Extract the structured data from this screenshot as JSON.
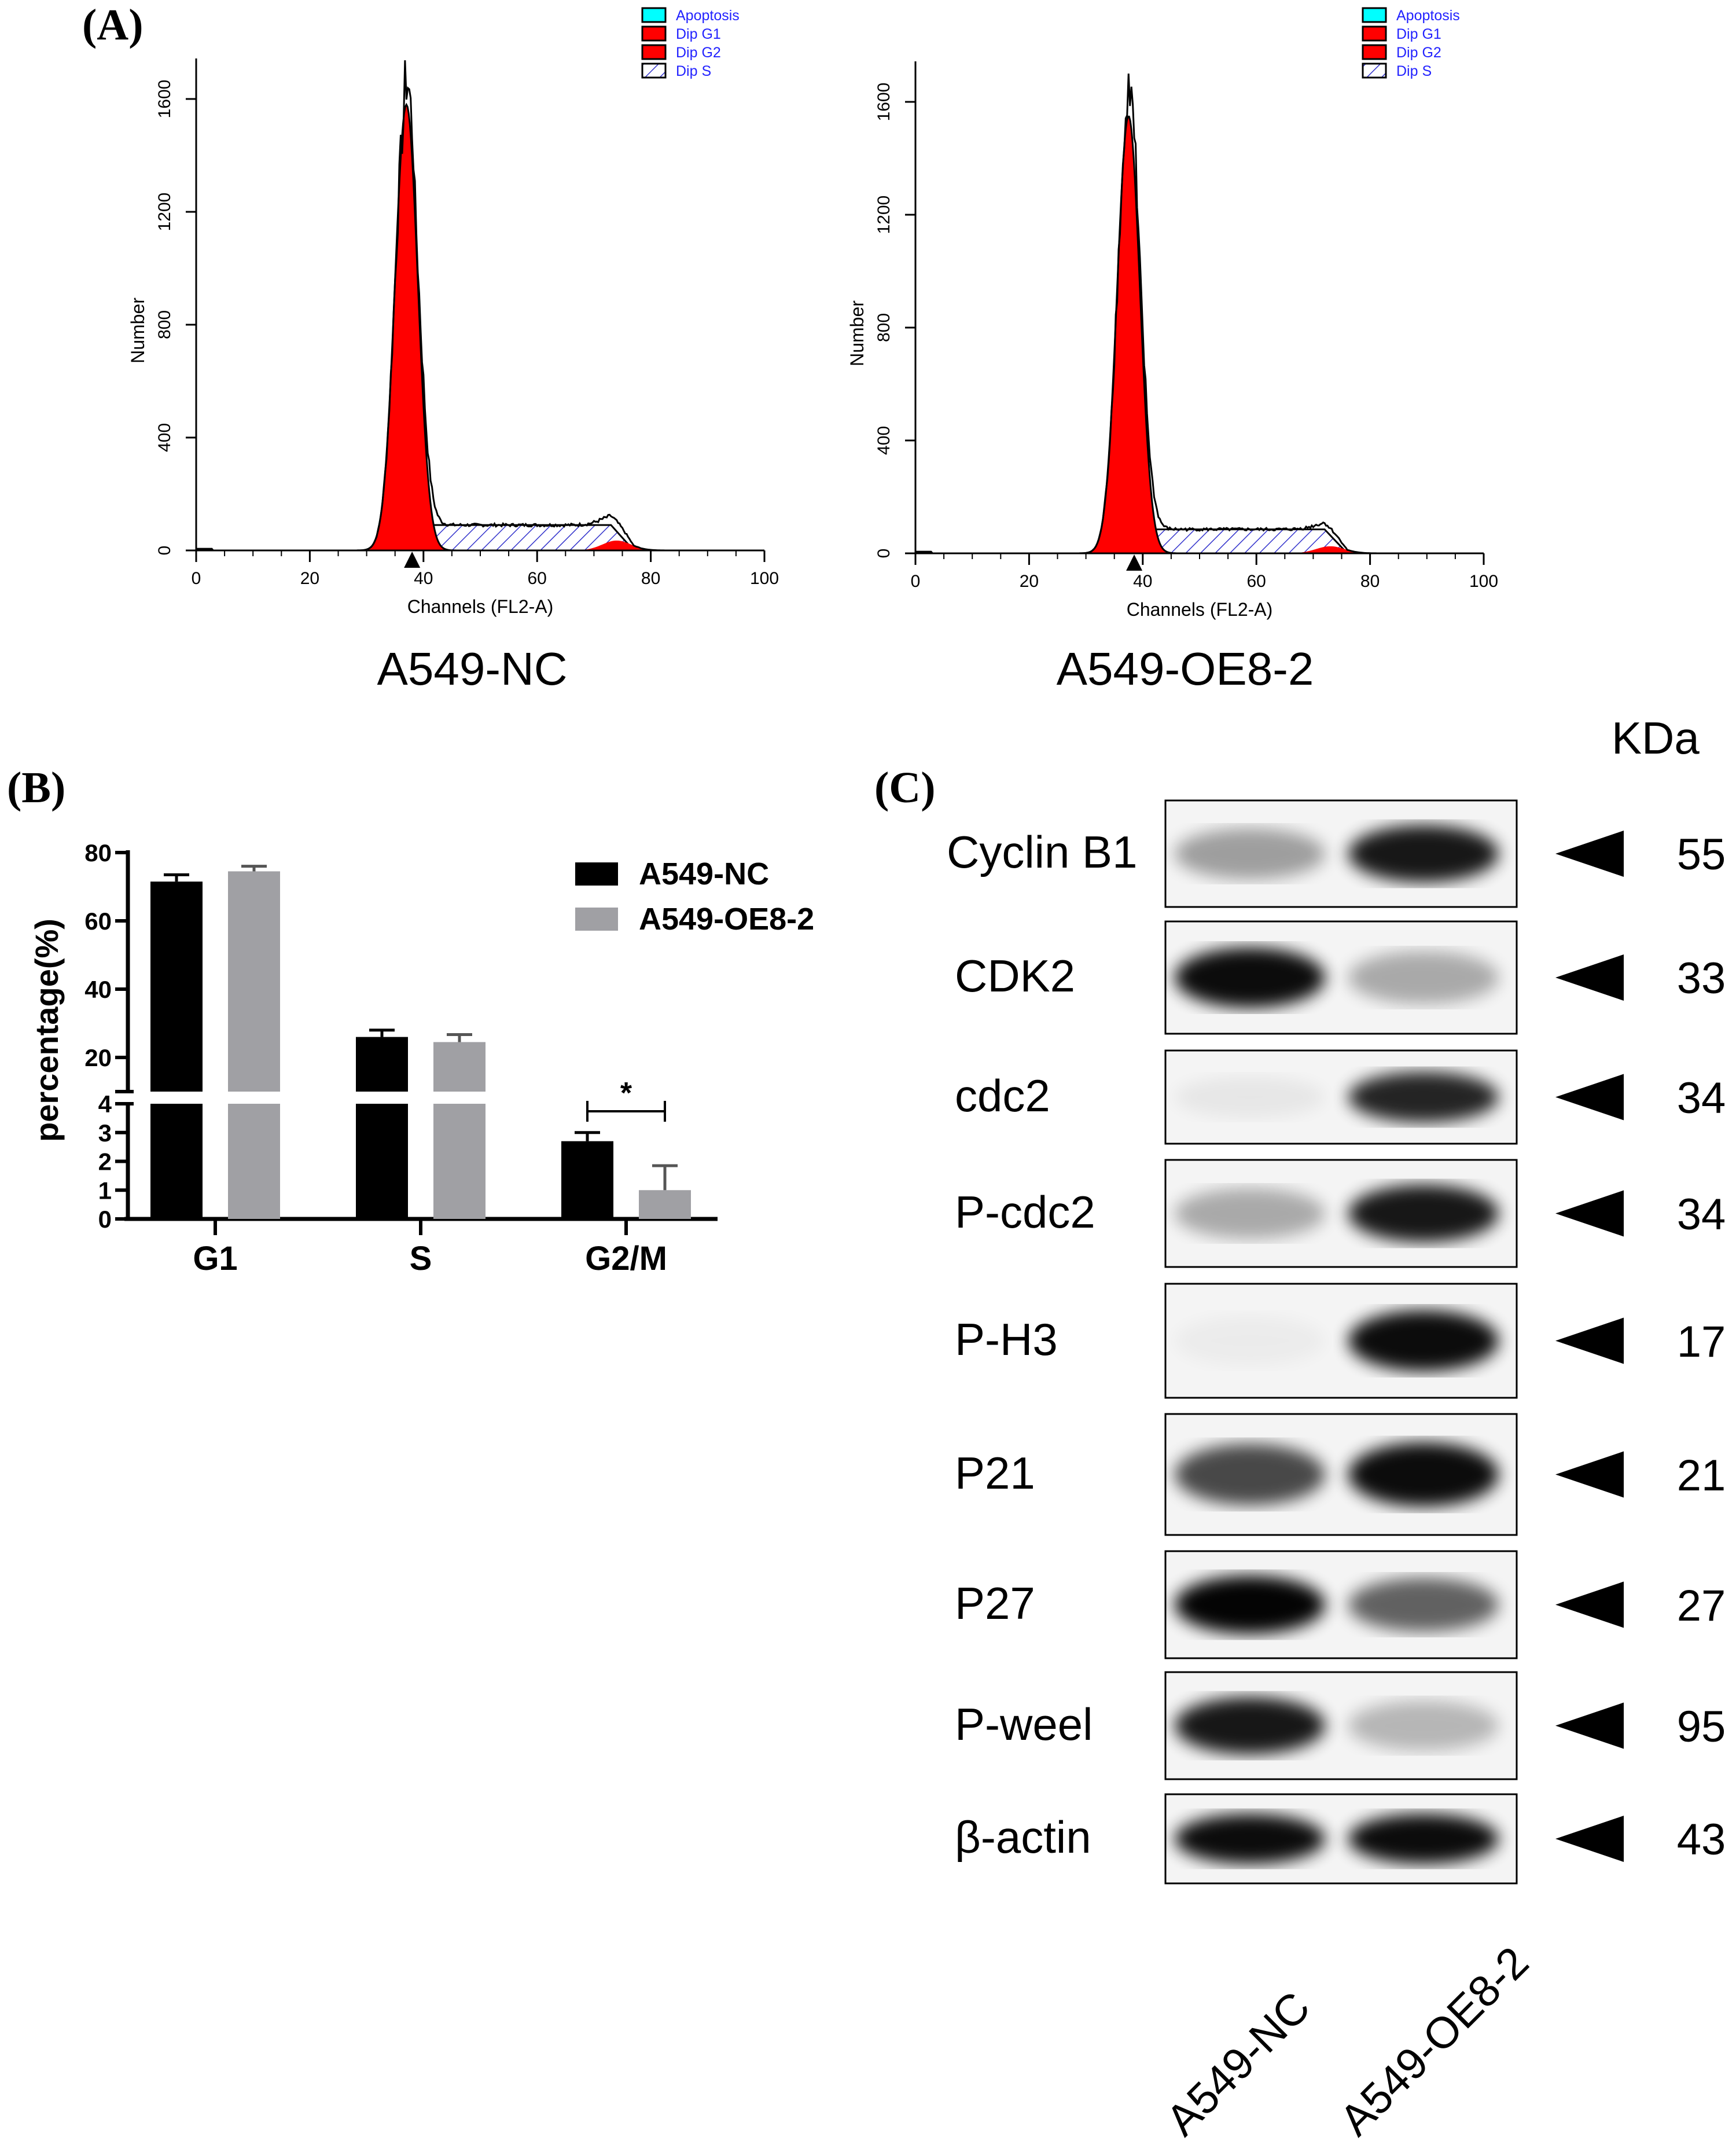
{
  "panel_a": {
    "label": "(A)",
    "histograms": [
      {
        "title": "A549-NC",
        "g1_peak_channel": 37,
        "g1_peak_count": 1580,
        "total_peak_count": 1660,
        "s_level": 90,
        "g2_channel": 74,
        "g2_count": 35
      },
      {
        "title": "A549-OE8-2",
        "g1_peak_channel": 37.5,
        "g1_peak_count": 1550,
        "total_peak_count": 1640,
        "s_level": 85,
        "g2_channel": 73,
        "g2_count": 25
      }
    ],
    "xlabel": "Channels (FL2-A)",
    "ylabel": "Number",
    "xticks": [
      0,
      20,
      40,
      60,
      80,
      100
    ],
    "yticks": [
      0,
      400,
      800,
      1200,
      1600
    ],
    "xlim": [
      0,
      100
    ],
    "ylim": [
      0,
      1750
    ],
    "legend": [
      {
        "label": "Apoptosis",
        "color": "#00ffff"
      },
      {
        "label": "Dip G1",
        "color": "#ff0000"
      },
      {
        "label": "Dip G2",
        "color": "#ff0000"
      },
      {
        "label": "Dip S",
        "color": "hatched-blue"
      }
    ]
  },
  "chart_data": {
    "type": "bar",
    "label": "(B)",
    "categories": [
      "G1",
      "S",
      "G2/M"
    ],
    "series": [
      {
        "name": "A549-NC",
        "color": "#000000",
        "values": [
          71.5,
          26.0,
          2.7
        ],
        "errors": [
          2.0,
          2.0,
          0.3
        ]
      },
      {
        "name": "A549-OE8-2",
        "color": "#a0a0a4",
        "values": [
          74.5,
          24.5,
          1.0
        ],
        "errors": [
          1.5,
          2.2,
          0.85
        ]
      }
    ],
    "ylabel": "percentage(%)",
    "y_axis_break": true,
    "ylim_lower": [
      0,
      4
    ],
    "ylim_upper": [
      10,
      80
    ],
    "yticks_lower": [
      0,
      1,
      2,
      3,
      4
    ],
    "yticks_upper": [
      20,
      40,
      60,
      80
    ],
    "significance": {
      "category": "G2/M",
      "mark": "*"
    },
    "legend_placement": "top-right"
  },
  "panel_c": {
    "label": "(C)",
    "kda_header": "KDa",
    "lanes": [
      "A549-NC",
      "A549-OE8-2"
    ],
    "blots": [
      {
        "protein": "Cyclin B1",
        "kda": "55",
        "intensity": [
          0.35,
          0.9
        ]
      },
      {
        "protein": "CDK2",
        "kda": "33",
        "intensity": [
          0.95,
          0.3
        ]
      },
      {
        "protein": "cdc2",
        "kda": "34",
        "intensity": [
          0.05,
          0.85
        ]
      },
      {
        "protein": "P-cdc2",
        "kda": "34",
        "intensity": [
          0.3,
          0.9
        ]
      },
      {
        "protein": "P-H3",
        "kda": "17",
        "intensity": [
          0.03,
          0.95
        ]
      },
      {
        "protein": "P21",
        "kda": "21",
        "intensity": [
          0.7,
          0.95
        ]
      },
      {
        "protein": "P27",
        "kda": "27",
        "intensity": [
          0.98,
          0.6
        ]
      },
      {
        "protein": "P-weel",
        "kda": "95",
        "intensity": [
          0.9,
          0.25
        ]
      },
      {
        "protein": "β-actin",
        "kda": "43",
        "intensity": [
          0.95,
          0.95
        ]
      }
    ]
  }
}
